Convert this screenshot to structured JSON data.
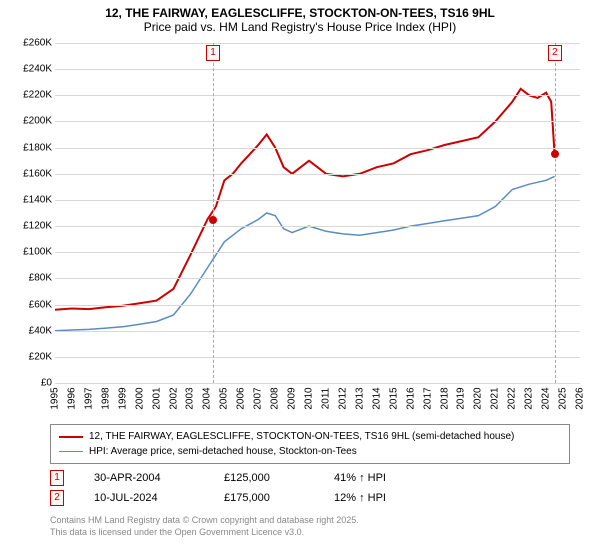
{
  "title": {
    "line1": "12, THE FAIRWAY, EAGLESCLIFFE, STOCKTON-ON-TEES, TS16 9HL",
    "line2": "Price paid vs. HM Land Registry's House Price Index (HPI)"
  },
  "chart": {
    "type": "line",
    "background_color": "#ffffff",
    "grid_color": "#d8d8d8",
    "xlim": [
      1995,
      2026
    ],
    "ylim": [
      0,
      260000
    ],
    "ytick_step": 20000,
    "yticks": [
      {
        "v": 0,
        "label": "£0"
      },
      {
        "v": 20000,
        "label": "£20K"
      },
      {
        "v": 40000,
        "label": "£40K"
      },
      {
        "v": 60000,
        "label": "£60K"
      },
      {
        "v": 80000,
        "label": "£80K"
      },
      {
        "v": 100000,
        "label": "£100K"
      },
      {
        "v": 120000,
        "label": "£120K"
      },
      {
        "v": 140000,
        "label": "£140K"
      },
      {
        "v": 160000,
        "label": "£160K"
      },
      {
        "v": 180000,
        "label": "£180K"
      },
      {
        "v": 200000,
        "label": "£200K"
      },
      {
        "v": 220000,
        "label": "£220K"
      },
      {
        "v": 240000,
        "label": "£240K"
      },
      {
        "v": 260000,
        "label": "£260K"
      }
    ],
    "xticks": [
      1995,
      1996,
      1997,
      1998,
      1999,
      2000,
      2001,
      2002,
      2003,
      2004,
      2005,
      2006,
      2007,
      2008,
      2009,
      2010,
      2011,
      2012,
      2013,
      2014,
      2015,
      2016,
      2017,
      2018,
      2019,
      2020,
      2021,
      2022,
      2023,
      2024,
      2025,
      2026
    ],
    "series": [
      {
        "name": "12, THE FAIRWAY, EAGLESCLIFFE, STOCKTON-ON-TEES, TS16 9HL (semi-detached house)",
        "color": "#cc0000",
        "line_width": 2,
        "data": [
          [
            1995,
            56000
          ],
          [
            1996,
            57000
          ],
          [
            1997,
            56500
          ],
          [
            1998,
            58000
          ],
          [
            1999,
            59000
          ],
          [
            2000,
            61000
          ],
          [
            2001,
            63000
          ],
          [
            2002,
            72000
          ],
          [
            2003,
            98000
          ],
          [
            2004,
            125000
          ],
          [
            2004.5,
            135000
          ],
          [
            2005,
            155000
          ],
          [
            2005.5,
            160000
          ],
          [
            2006,
            168000
          ],
          [
            2006.5,
            175000
          ],
          [
            2007,
            182000
          ],
          [
            2007.5,
            190000
          ],
          [
            2008,
            180000
          ],
          [
            2008.5,
            165000
          ],
          [
            2009,
            160000
          ],
          [
            2010,
            170000
          ],
          [
            2010.5,
            165000
          ],
          [
            2011,
            160000
          ],
          [
            2012,
            158000
          ],
          [
            2013,
            160000
          ],
          [
            2014,
            165000
          ],
          [
            2015,
            168000
          ],
          [
            2016,
            175000
          ],
          [
            2017,
            178000
          ],
          [
            2018,
            182000
          ],
          [
            2019,
            185000
          ],
          [
            2020,
            188000
          ],
          [
            2021,
            200000
          ],
          [
            2022,
            215000
          ],
          [
            2022.5,
            225000
          ],
          [
            2023,
            220000
          ],
          [
            2023.5,
            218000
          ],
          [
            2024,
            222000
          ],
          [
            2024.3,
            215000
          ],
          [
            2024.5,
            175000
          ]
        ]
      },
      {
        "name": "HPI: Average price, semi-detached house, Stockton-on-Tees",
        "color": "#5b8bc4",
        "line_width": 1.5,
        "data": [
          [
            1995,
            40000
          ],
          [
            1996,
            40500
          ],
          [
            1997,
            41000
          ],
          [
            1998,
            42000
          ],
          [
            1999,
            43000
          ],
          [
            2000,
            45000
          ],
          [
            2001,
            47000
          ],
          [
            2002,
            52000
          ],
          [
            2003,
            68000
          ],
          [
            2004,
            88000
          ],
          [
            2005,
            108000
          ],
          [
            2006,
            118000
          ],
          [
            2007,
            125000
          ],
          [
            2007.5,
            130000
          ],
          [
            2008,
            128000
          ],
          [
            2008.5,
            118000
          ],
          [
            2009,
            115000
          ],
          [
            2010,
            120000
          ],
          [
            2011,
            116000
          ],
          [
            2012,
            114000
          ],
          [
            2013,
            113000
          ],
          [
            2014,
            115000
          ],
          [
            2015,
            117000
          ],
          [
            2016,
            120000
          ],
          [
            2017,
            122000
          ],
          [
            2018,
            124000
          ],
          [
            2019,
            126000
          ],
          [
            2020,
            128000
          ],
          [
            2021,
            135000
          ],
          [
            2022,
            148000
          ],
          [
            2023,
            152000
          ],
          [
            2024,
            155000
          ],
          [
            2024.5,
            158000
          ]
        ]
      }
    ],
    "markers": [
      {
        "n": "1",
        "x": 2004.33,
        "y": 125000
      },
      {
        "n": "2",
        "x": 2024.52,
        "y": 175000
      }
    ]
  },
  "legend": {
    "items": [
      {
        "label": "12, THE FAIRWAY, EAGLESCLIFFE, STOCKTON-ON-TEES, TS16 9HL (semi-detached house)",
        "color": "#cc0000",
        "width": 2
      },
      {
        "label": "HPI: Average price, semi-detached house, Stockton-on-Tees",
        "color": "#5b8bc4",
        "width": 1.5
      }
    ]
  },
  "sales": [
    {
      "n": "1",
      "date": "30-APR-2004",
      "price": "£125,000",
      "pct": "41% ↑ HPI"
    },
    {
      "n": "2",
      "date": "10-JUL-2024",
      "price": "£175,000",
      "pct": "12% ↑ HPI"
    }
  ],
  "footer": {
    "line1": "Contains HM Land Registry data © Crown copyright and database right 2025.",
    "line2": "This data is licensed under the Open Government Licence v3.0."
  }
}
